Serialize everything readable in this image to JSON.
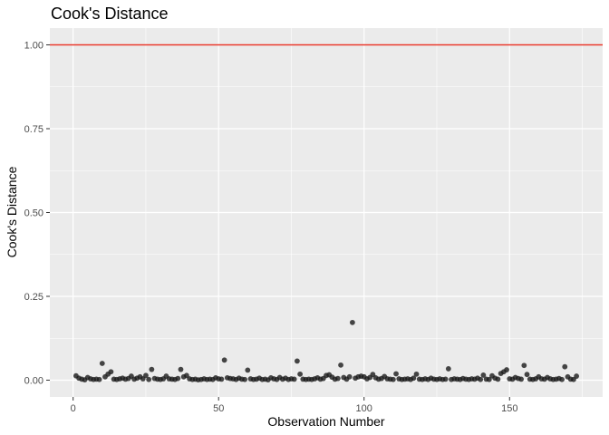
{
  "chart_data": {
    "type": "scatter",
    "title": "Cook's Distance",
    "xlabel": "Observation Number",
    "ylabel": "Cook's Distance",
    "xlim": [
      -8,
      182
    ],
    "ylim": [
      -0.05,
      1.05
    ],
    "x_ticks": [
      0,
      50,
      100,
      150
    ],
    "x_tick_labels": [
      "0",
      "50",
      "100",
      "150"
    ],
    "y_ticks": [
      0,
      0.25,
      0.5,
      0.75,
      1.0
    ],
    "y_tick_labels": [
      "0.00",
      "0.25",
      "0.50",
      "0.75",
      "1.00"
    ],
    "grid": true,
    "legend": "none",
    "reference_line": {
      "y": 1.0,
      "color": "#e8382c"
    },
    "colors": {
      "panel": "#ebebeb",
      "grid": "#ffffff",
      "point": "#1a1a1a"
    },
    "points": [
      [
        1,
        0.013
      ],
      [
        2,
        0.006
      ],
      [
        3,
        0.003
      ],
      [
        4,
        0.001
      ],
      [
        5,
        0.008
      ],
      [
        6,
        0.004
      ],
      [
        7,
        0.002
      ],
      [
        8,
        0.003
      ],
      [
        9,
        0.002
      ],
      [
        10,
        0.05
      ],
      [
        11,
        0.01
      ],
      [
        12,
        0.018
      ],
      [
        13,
        0.025
      ],
      [
        14,
        0.003
      ],
      [
        15,
        0.002
      ],
      [
        16,
        0.004
      ],
      [
        17,
        0.006
      ],
      [
        18,
        0.003
      ],
      [
        19,
        0.005
      ],
      [
        20,
        0.012
      ],
      [
        21,
        0.003
      ],
      [
        22,
        0.006
      ],
      [
        23,
        0.01
      ],
      [
        24,
        0.004
      ],
      [
        25,
        0.014
      ],
      [
        26,
        0.002
      ],
      [
        27,
        0.032
      ],
      [
        28,
        0.005
      ],
      [
        29,
        0.003
      ],
      [
        30,
        0.002
      ],
      [
        31,
        0.004
      ],
      [
        32,
        0.012
      ],
      [
        33,
        0.004
      ],
      [
        34,
        0.003
      ],
      [
        35,
        0.002
      ],
      [
        36,
        0.005
      ],
      [
        37,
        0.032
      ],
      [
        38,
        0.01
      ],
      [
        39,
        0.014
      ],
      [
        40,
        0.004
      ],
      [
        41,
        0.002
      ],
      [
        42,
        0.003
      ],
      [
        43,
        0.001
      ],
      [
        44,
        0.002
      ],
      [
        45,
        0.004
      ],
      [
        46,
        0.002
      ],
      [
        47,
        0.003
      ],
      [
        48,
        0.002
      ],
      [
        49,
        0.007
      ],
      [
        50,
        0.004
      ],
      [
        51,
        0.003
      ],
      [
        52,
        0.06
      ],
      [
        53,
        0.007
      ],
      [
        54,
        0.005
      ],
      [
        55,
        0.004
      ],
      [
        56,
        0.002
      ],
      [
        57,
        0.006
      ],
      [
        58,
        0.003
      ],
      [
        59,
        0.002
      ],
      [
        60,
        0.03
      ],
      [
        61,
        0.004
      ],
      [
        62,
        0.002
      ],
      [
        63,
        0.003
      ],
      [
        64,
        0.006
      ],
      [
        65,
        0.002
      ],
      [
        66,
        0.003
      ],
      [
        67,
        0.001
      ],
      [
        68,
        0.007
      ],
      [
        69,
        0.004
      ],
      [
        70,
        0.002
      ],
      [
        71,
        0.008
      ],
      [
        72,
        0.003
      ],
      [
        73,
        0.006
      ],
      [
        74,
        0.002
      ],
      [
        75,
        0.004
      ],
      [
        76,
        0.003
      ],
      [
        77,
        0.057
      ],
      [
        78,
        0.018
      ],
      [
        79,
        0.003
      ],
      [
        80,
        0.002
      ],
      [
        81,
        0.003
      ],
      [
        82,
        0.002
      ],
      [
        83,
        0.004
      ],
      [
        84,
        0.007
      ],
      [
        85,
        0.003
      ],
      [
        86,
        0.005
      ],
      [
        87,
        0.014
      ],
      [
        88,
        0.016
      ],
      [
        89,
        0.009
      ],
      [
        90,
        0.003
      ],
      [
        91,
        0.005
      ],
      [
        92,
        0.045
      ],
      [
        93,
        0.008
      ],
      [
        94,
        0.003
      ],
      [
        95,
        0.01
      ],
      [
        96,
        0.172
      ],
      [
        97,
        0.006
      ],
      [
        98,
        0.01
      ],
      [
        99,
        0.012
      ],
      [
        100,
        0.01
      ],
      [
        101,
        0.004
      ],
      [
        102,
        0.008
      ],
      [
        103,
        0.017
      ],
      [
        104,
        0.007
      ],
      [
        105,
        0.003
      ],
      [
        106,
        0.005
      ],
      [
        107,
        0.011
      ],
      [
        108,
        0.004
      ],
      [
        109,
        0.003
      ],
      [
        110,
        0.002
      ],
      [
        111,
        0.019
      ],
      [
        112,
        0.004
      ],
      [
        113,
        0.002
      ],
      [
        114,
        0.003
      ],
      [
        115,
        0.004
      ],
      [
        116,
        0.002
      ],
      [
        117,
        0.006
      ],
      [
        118,
        0.018
      ],
      [
        119,
        0.003
      ],
      [
        120,
        0.002
      ],
      [
        121,
        0.004
      ],
      [
        122,
        0.002
      ],
      [
        123,
        0.006
      ],
      [
        124,
        0.003
      ],
      [
        125,
        0.002
      ],
      [
        126,
        0.004
      ],
      [
        127,
        0.002
      ],
      [
        128,
        0.003
      ],
      [
        129,
        0.034
      ],
      [
        130,
        0.002
      ],
      [
        131,
        0.004
      ],
      [
        132,
        0.003
      ],
      [
        133,
        0.002
      ],
      [
        134,
        0.005
      ],
      [
        135,
        0.003
      ],
      [
        136,
        0.002
      ],
      [
        137,
        0.004
      ],
      [
        138,
        0.003
      ],
      [
        139,
        0.006
      ],
      [
        140,
        0.002
      ],
      [
        141,
        0.015
      ],
      [
        142,
        0.003
      ],
      [
        143,
        0.002
      ],
      [
        144,
        0.013
      ],
      [
        145,
        0.006
      ],
      [
        146,
        0.003
      ],
      [
        147,
        0.02
      ],
      [
        148,
        0.025
      ],
      [
        149,
        0.031
      ],
      [
        150,
        0.004
      ],
      [
        151,
        0.003
      ],
      [
        152,
        0.008
      ],
      [
        153,
        0.005
      ],
      [
        154,
        0.003
      ],
      [
        155,
        0.044
      ],
      [
        156,
        0.017
      ],
      [
        157,
        0.003
      ],
      [
        158,
        0.002
      ],
      [
        159,
        0.004
      ],
      [
        160,
        0.01
      ],
      [
        161,
        0.004
      ],
      [
        162,
        0.003
      ],
      [
        163,
        0.008
      ],
      [
        164,
        0.004
      ],
      [
        165,
        0.002
      ],
      [
        166,
        0.003
      ],
      [
        167,
        0.005
      ],
      [
        168,
        0.002
      ],
      [
        169,
        0.04
      ],
      [
        170,
        0.01
      ],
      [
        171,
        0.003
      ],
      [
        172,
        0.002
      ],
      [
        173,
        0.012
      ]
    ]
  }
}
